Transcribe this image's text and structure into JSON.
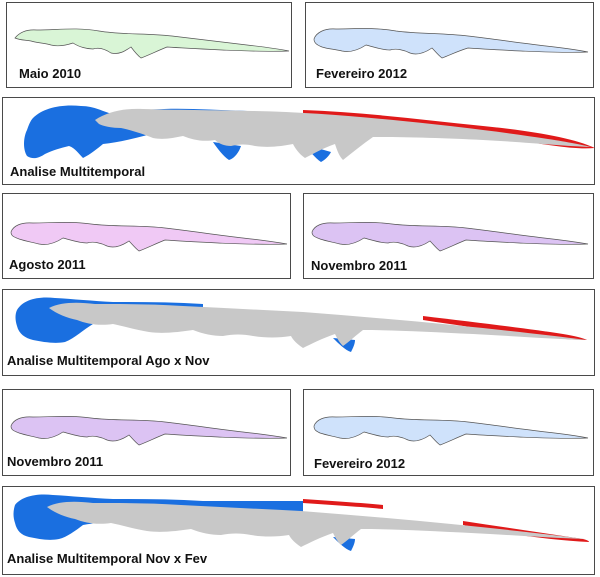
{
  "colors": {
    "may2010": "#d9f5d6",
    "feb2012": "#cfe2fb",
    "aug2011": "#f0c9f5",
    "nov2011": "#dcc3f3",
    "overlap_gray": "#c8c8c8",
    "gain_blue": "#1a6fe0",
    "loss_red": "#e01a1a",
    "outline": "#4a4a4a"
  },
  "panels": {
    "maio2010": {
      "label": "Maio 2010"
    },
    "fev2012_a": {
      "label": "Fevereiro 2012"
    },
    "multi1": {
      "label": "Analise Multitemporal"
    },
    "ago2011": {
      "label": "Agosto 2011"
    },
    "nov2011_a": {
      "label": "Novembro 2011"
    },
    "multi2": {
      "label": "Analise Multitemporal Ago x Nov"
    },
    "nov2011_b": {
      "label": "Novembro 2011"
    },
    "fev2012_b": {
      "label": "Fevereiro 2012"
    },
    "multi3": {
      "label": "Analise Multitemporal Nov x Fev"
    }
  }
}
